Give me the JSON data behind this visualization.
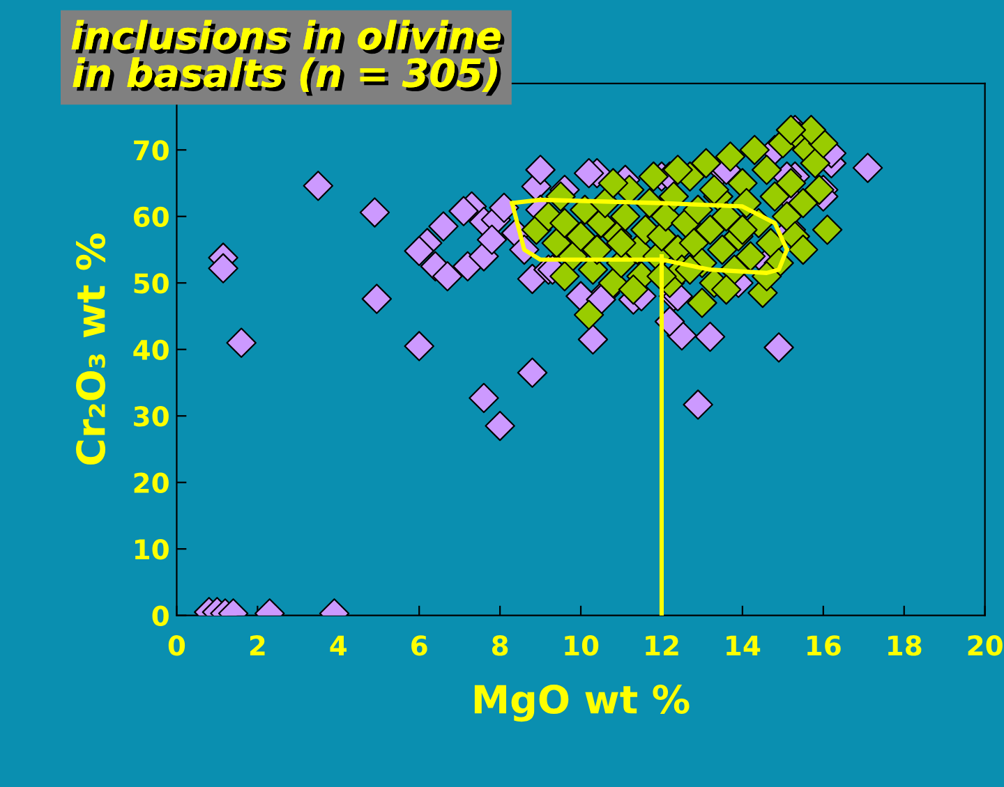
{
  "chart_data": {
    "type": "scatter",
    "title": "inclusions in olivine\nin basalts (n = 305)",
    "xlabel": "MgO wt %",
    "ylabel": "Cr₂O₃ wt %",
    "xlim": [
      0,
      20
    ],
    "ylim": [
      0,
      80
    ],
    "xticks": [
      0,
      2,
      4,
      6,
      8,
      10,
      12,
      14,
      16,
      18,
      20
    ],
    "yticks": [
      0,
      10,
      20,
      30,
      40,
      50,
      60,
      70
    ],
    "grid": false,
    "legend": false,
    "marker": "diamond",
    "series": [
      {
        "color": "#cc99ff",
        "x": [
          0.8,
          1.0,
          1.2,
          1.4,
          2.3,
          3.9,
          1.15,
          1.15,
          1.6,
          3.5,
          4.9,
          4.95,
          6.0,
          7.6,
          8.0,
          8.8,
          8.8,
          10.3,
          12.5,
          13.2,
          12.9,
          14.9,
          12.2,
          11.3,
          10.6,
          17.1,
          6.6,
          6.2,
          6.0,
          6.4,
          6.7,
          7.2,
          7.3,
          7.1,
          7.6,
          7.9,
          8.1,
          7.6,
          7.8,
          8.4,
          8.6,
          8.9,
          9.0,
          10.4,
          12.0,
          13.5,
          15.3,
          16.0,
          16.2,
          15.2,
          15.3,
          9.2,
          10.0,
          12.3,
          9.0,
          9.6,
          10.2,
          11.1,
          12.2,
          13.6,
          14.8,
          15.3,
          16.2,
          15.1,
          16.0,
          9.3,
          10.0,
          12.4,
          13.9,
          14.6,
          10.5,
          11.5
        ],
        "values": [
          0.5,
          0.5,
          0.3,
          0.3,
          0.3,
          0.3,
          53.8,
          52.2,
          41,
          64.6,
          60.6,
          47.6,
          40.5,
          32.7,
          28.5,
          36.5,
          50.6,
          41.5,
          42.1,
          41.9,
          31.7,
          40.3,
          44.2,
          47.5,
          48.5,
          67.3,
          58.5,
          56,
          54.8,
          52.5,
          51,
          52.5,
          61.5,
          60.8,
          59.2,
          59.5,
          61.3,
          54,
          56.5,
          57.5,
          55,
          64.5,
          67,
          66.5,
          66,
          67,
          66,
          64,
          68,
          58,
          62,
          52,
          48,
          48,
          61,
          64,
          66.5,
          65.5,
          66,
          67,
          70,
          73,
          69.5,
          66,
          63,
          52,
          48,
          48,
          50,
          53,
          47.5,
          48
        ]
      },
      {
        "color": "#99cc00",
        "x": [
          8.9,
          9.2,
          9.4,
          9.6,
          9.8,
          10.0,
          10.1,
          10.3,
          10.4,
          10.5,
          10.6,
          10.8,
          10.9,
          11.0,
          11.1,
          11.2,
          11.4,
          11.5,
          11.6,
          11.7,
          11.9,
          12.0,
          12.1,
          12.2,
          12.3,
          12.4,
          12.5,
          12.6,
          12.7,
          12.8,
          12.9,
          13.0,
          13.1,
          13.2,
          13.3,
          13.4,
          13.5,
          13.6,
          13.7,
          13.8,
          13.9,
          14.0,
          14.1,
          14.2,
          14.3,
          14.4,
          14.5,
          14.6,
          14.7,
          14.8,
          14.9,
          15.0,
          15.1,
          15.2,
          15.3,
          15.4,
          15.5,
          15.6,
          15.8,
          15.9,
          16.1,
          16.0,
          15.7,
          15.2,
          10.2,
          12.4,
          13.0,
          11.3,
          9.6,
          12.0,
          13.6,
          14.6,
          11.8,
          10.8,
          9.5,
          15.5,
          14.0,
          13.3,
          12.7,
          11.0
        ],
        "values": [
          58,
          60,
          56,
          59,
          54,
          57,
          61,
          52,
          55,
          59,
          62,
          50,
          57,
          53,
          60,
          64,
          55,
          51,
          58,
          62,
          54,
          57,
          60,
          50,
          63,
          55,
          52,
          59,
          66,
          56,
          61,
          53,
          68,
          58,
          50,
          63,
          55,
          60,
          69,
          52,
          57,
          65,
          62,
          54,
          70,
          59,
          48.5,
          67,
          56,
          63,
          53,
          71,
          60,
          65,
          57,
          72,
          62,
          70,
          68,
          64,
          58,
          71,
          73,
          73,
          45.2,
          67,
          47,
          49,
          51,
          51,
          49,
          51,
          66,
          65,
          63,
          55,
          58,
          64,
          52,
          56
        ]
      },
      {
        "type": "line",
        "marker": "none",
        "color": "#ffff00",
        "x": [
          12,
          12
        ],
        "values": [
          0,
          54
        ]
      },
      {
        "type": "line",
        "marker": "none",
        "color": "#ffff00",
        "x": [
          8.3,
          9.0,
          12.0,
          14.0,
          14.8,
          15.1
        ],
        "values": [
          62,
          62.5,
          62,
          61.5,
          59,
          55
        ]
      },
      {
        "type": "line",
        "marker": "none",
        "color": "#ffff00",
        "x": [
          8.3,
          8.6,
          9.0,
          12.0,
          13.2,
          14.6,
          14.9,
          15.1
        ],
        "values": [
          62,
          55,
          53.5,
          53.5,
          52,
          51.5,
          52,
          55
        ]
      }
    ]
  }
}
